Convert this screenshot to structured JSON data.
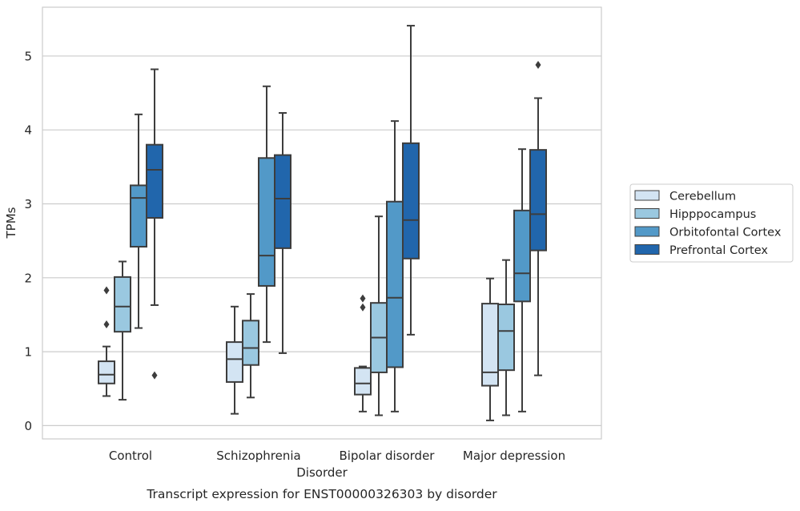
{
  "chart_data": {
    "type": "box",
    "title": "",
    "caption": "Transcript expression for ENST00000326303 by disorder",
    "xlabel": "Disorder",
    "ylabel": "TPMs",
    "ylim": [
      -0.18,
      5.66
    ],
    "yticks": [
      0,
      1,
      2,
      3,
      4,
      5
    ],
    "grid": "horizontal",
    "legend_position": "right",
    "categories": [
      "Control",
      "Schizophrenia",
      "Bipolar disorder",
      "Major depression"
    ],
    "series": [
      {
        "name": "Cerebellum",
        "color": "#d3e4f3",
        "boxes": [
          {
            "whisker_low": 0.4,
            "q1": 0.57,
            "median": 0.69,
            "q3": 0.87,
            "whisker_high": 1.07,
            "outliers": [
              1.37,
              1.83
            ]
          },
          {
            "whisker_low": 0.16,
            "q1": 0.59,
            "median": 0.9,
            "q3": 1.13,
            "whisker_high": 1.61,
            "outliers": []
          },
          {
            "whisker_low": 0.19,
            "q1": 0.42,
            "median": 0.57,
            "q3": 0.78,
            "whisker_high": 0.8,
            "outliers": [
              1.6,
              1.72
            ]
          },
          {
            "whisker_low": 0.07,
            "q1": 0.54,
            "median": 0.72,
            "q3": 1.65,
            "whisker_high": 1.99,
            "outliers": []
          }
        ]
      },
      {
        "name": "Hipppocampus",
        "color": "#9ac8e0",
        "boxes": [
          {
            "whisker_low": 0.35,
            "q1": 1.27,
            "median": 1.61,
            "q3": 2.01,
            "whisker_high": 2.22,
            "outliers": []
          },
          {
            "whisker_low": 0.38,
            "q1": 0.82,
            "median": 1.05,
            "q3": 1.42,
            "whisker_high": 1.78,
            "outliers": []
          },
          {
            "whisker_low": 0.14,
            "q1": 0.72,
            "median": 1.19,
            "q3": 1.66,
            "whisker_high": 2.83,
            "outliers": []
          },
          {
            "whisker_low": 0.14,
            "q1": 0.75,
            "median": 1.28,
            "q3": 1.64,
            "whisker_high": 2.24,
            "outliers": []
          }
        ]
      },
      {
        "name": "Orbitofontal Cortex",
        "color": "#5299c8",
        "boxes": [
          {
            "whisker_low": 1.32,
            "q1": 2.42,
            "median": 3.08,
            "q3": 3.25,
            "whisker_high": 4.21,
            "outliers": []
          },
          {
            "whisker_low": 1.13,
            "q1": 1.89,
            "median": 2.3,
            "q3": 3.62,
            "whisker_high": 4.59,
            "outliers": []
          },
          {
            "whisker_low": 0.19,
            "q1": 0.79,
            "median": 1.73,
            "q3": 3.03,
            "whisker_high": 4.12,
            "outliers": []
          },
          {
            "whisker_low": 0.19,
            "q1": 1.68,
            "median": 2.06,
            "q3": 2.91,
            "whisker_high": 3.74,
            "outliers": []
          }
        ]
      },
      {
        "name": "Prefrontal Cortex",
        "color": "#2166ac",
        "boxes": [
          {
            "whisker_low": 1.63,
            "q1": 2.81,
            "median": 3.46,
            "q3": 3.8,
            "whisker_high": 4.82,
            "outliers": [
              0.68
            ]
          },
          {
            "whisker_low": 0.98,
            "q1": 2.4,
            "median": 3.07,
            "q3": 3.66,
            "whisker_high": 4.23,
            "outliers": []
          },
          {
            "whisker_low": 1.23,
            "q1": 2.26,
            "median": 2.78,
            "q3": 3.82,
            "whisker_high": 5.41,
            "outliers": []
          },
          {
            "whisker_low": 0.68,
            "q1": 2.37,
            "median": 2.86,
            "q3": 3.73,
            "whisker_high": 4.43,
            "outliers": [
              4.88
            ]
          }
        ]
      }
    ]
  }
}
